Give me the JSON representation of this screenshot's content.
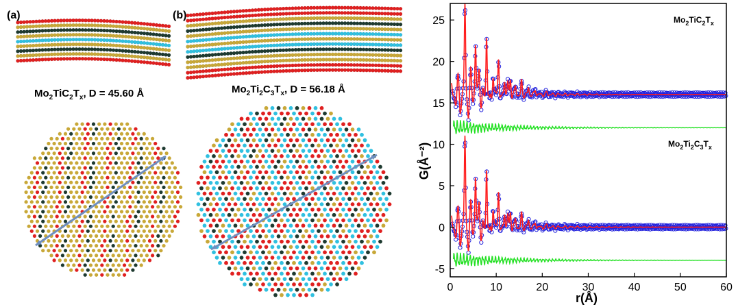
{
  "panels": {
    "a": {
      "letter": "(a)",
      "formula": {
        "p1": "Mo",
        "s1": "2",
        "p2": "TiC",
        "s2": "2",
        "p3": "T",
        "s3": "x",
        "rest": ", D = 45.60 Å"
      }
    },
    "b": {
      "letter": "(b)",
      "formula": {
        "p1": "Mo",
        "s1": "2",
        "p2": "Ti",
        "s2": "2",
        "p3": "C",
        "s3": "3",
        "p4": "T",
        "s4": "x",
        "rest": ", D = 56.18 Å"
      }
    }
  },
  "colors": {
    "atom_red": "#e02020",
    "atom_gold": "#c8a838",
    "atom_cyan": "#30c0e0",
    "atom_dark": "#1e3a30",
    "arrow": "#6f8fc0",
    "observed": "#2222dd",
    "fit": "#ff1e1e",
    "difference": "#22e022"
  },
  "chart_data": {
    "type": "line",
    "xlabel": "r(Å)",
    "ylabel": "G(Å⁻²)",
    "xlim": [
      0,
      60
    ],
    "ylim": [
      -6,
      27
    ],
    "xticks": [
      0,
      10,
      20,
      30,
      40,
      50,
      60
    ],
    "yticks": [
      -5,
      0,
      5,
      10,
      15,
      20,
      25
    ],
    "grid": false,
    "series_labels": [
      {
        "p1": "Mo",
        "s1": "2",
        "p2": "TiC",
        "s2": "2",
        "p3": "T",
        "s3": "x"
      },
      {
        "p1": "Mo",
        "s1": "2",
        "p2": "Ti",
        "s2": "2",
        "p3": "C",
        "s3": "3",
        "p4": "T",
        "s4": "x"
      }
    ],
    "series": [
      {
        "style": "observed (open circles)",
        "offset": 16,
        "peaks": [
          [
            1.6,
            0.8
          ],
          [
            2.1,
            -1.0
          ],
          [
            3.2,
            10.5
          ],
          [
            4.0,
            -1.8
          ],
          [
            4.5,
            2.0
          ],
          [
            5.5,
            6.0
          ],
          [
            6.3,
            3.5
          ],
          [
            6.8,
            -1.5
          ],
          [
            7.9,
            7.2
          ],
          [
            8.6,
            -1.2
          ],
          [
            9.3,
            2.5
          ],
          [
            10.5,
            4.5
          ],
          [
            11.2,
            -0.8
          ],
          [
            11.8,
            2.0
          ],
          [
            12.5,
            1.5
          ],
          [
            13.1,
            1.8
          ],
          [
            14.2,
            1.0
          ],
          [
            15.5,
            1.5
          ],
          [
            17.0,
            0.8
          ],
          [
            18.5,
            0.6
          ],
          [
            21.0,
            0.3
          ]
        ]
      },
      {
        "style": "observed (open circles)",
        "offset": 0,
        "peaks": [
          [
            1.6,
            0.8
          ],
          [
            2.1,
            -1.0
          ],
          [
            3.2,
            10.5
          ],
          [
            4.0,
            -1.8
          ],
          [
            4.5,
            2.0
          ],
          [
            5.5,
            6.0
          ],
          [
            6.3,
            3.5
          ],
          [
            6.8,
            -1.5
          ],
          [
            7.9,
            7.2
          ],
          [
            8.6,
            -1.2
          ],
          [
            9.3,
            2.5
          ],
          [
            10.5,
            4.5
          ],
          [
            11.2,
            -0.8
          ],
          [
            11.8,
            2.0
          ],
          [
            12.5,
            1.5
          ],
          [
            13.1,
            1.8
          ],
          [
            14.2,
            1.0
          ],
          [
            15.5,
            1.5
          ],
          [
            17.0,
            0.8
          ],
          [
            18.5,
            0.6
          ],
          [
            21.0,
            0.3
          ]
        ]
      }
    ],
    "difference_offsets": [
      12,
      -4
    ]
  }
}
